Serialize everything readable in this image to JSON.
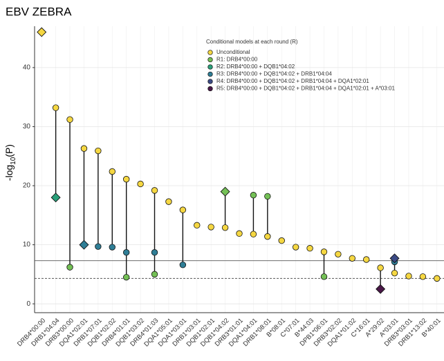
{
  "chart_data": {
    "type": "lollipop",
    "title": "EBV ZEBRA",
    "ylabel_parts": [
      "-log",
      "10",
      "(P)"
    ],
    "legend_title": "Conditional models at each round (R)",
    "categories": [
      "DRB4*00:00",
      "DRB1*04:04",
      "DRB3*00:00",
      "DQA1*02:01",
      "DRB1*07:01",
      "DQB1*02:02",
      "DRB4*01:01",
      "DQB1*03:02",
      "DRB4*01:03",
      "DQA1*05:01",
      "DQA1*03:01",
      "DRB1*03:01",
      "DQB1*02:01",
      "DQB1*04:02",
      "DRB3*01:01",
      "DQA1*04:01",
      "DRB1*08:01",
      "B*08:01",
      "C*07:01",
      "B*44:03",
      "DPB1*06:01",
      "DRB3*02:02",
      "DQA1*01:02",
      "C*16:01",
      "A*29:02",
      "A*03:01",
      "DRB3*03:01",
      "DRB1*13:02",
      "B*40:01"
    ],
    "series": [
      {
        "name": "Unconditional",
        "color": "#f5d742",
        "lead": 0,
        "values": [
          46,
          33.2,
          31.2,
          26.3,
          25.9,
          22.4,
          21.1,
          20.3,
          19.2,
          17.3,
          15.9,
          13.3,
          13,
          12.9,
          11.9,
          11.8,
          11.4,
          10.7,
          9.6,
          9.4,
          8.8,
          8.4,
          7.7,
          7.5,
          6.1,
          5.2,
          4.7,
          4.6,
          4.3
        ]
      },
      {
        "name": "R1: DRB4*00:00",
        "color": "#74c056",
        "lead": 13,
        "values": [
          null,
          null,
          6.2,
          null,
          null,
          null,
          4.5,
          null,
          5.0,
          null,
          null,
          null,
          null,
          19,
          null,
          18.4,
          18.2,
          null,
          null,
          null,
          4.6,
          null,
          null,
          null,
          null,
          null,
          null,
          null,
          null
        ]
      },
      {
        "name": "R2: DRB4*00:00 + DQB1*04:02",
        "color": "#2aa07a",
        "lead": 1,
        "values": [
          null,
          18,
          null,
          null,
          null,
          null,
          null,
          null,
          null,
          null,
          null,
          null,
          null,
          null,
          null,
          null,
          null,
          null,
          null,
          null,
          null,
          null,
          null,
          null,
          null,
          null,
          null,
          null,
          null
        ]
      },
      {
        "name": "R3: DRB4*00:00 + DQB1*04:02 + DRB1*04:04",
        "color": "#2f7e96",
        "lead": 3,
        "values": [
          null,
          null,
          null,
          10,
          9.7,
          9.6,
          8.7,
          null,
          8.7,
          null,
          6.6,
          null,
          null,
          null,
          null,
          null,
          null,
          null,
          null,
          null,
          null,
          null,
          null,
          null,
          null,
          7.1,
          null,
          null,
          null
        ]
      },
      {
        "name": "R4: DRB4*00:00 + DQB1*04:02 + DRB1*04:04 + DQA1*02:01",
        "color": "#3b4a85",
        "lead": 25,
        "values": [
          null,
          null,
          null,
          null,
          null,
          null,
          null,
          null,
          null,
          null,
          null,
          null,
          null,
          null,
          null,
          null,
          null,
          null,
          null,
          null,
          null,
          null,
          null,
          null,
          null,
          7.7,
          null,
          null,
          null
        ]
      },
      {
        "name": "R5: DRB4*00:00 + DQB1*04:02 + DRB1*04:04 + DQA1*02:01 + A*03:01",
        "color": "#4a1848",
        "lead": 24,
        "values": [
          null,
          null,
          null,
          null,
          null,
          null,
          null,
          null,
          null,
          null,
          null,
          null,
          null,
          null,
          null,
          null,
          null,
          null,
          null,
          null,
          null,
          null,
          null,
          null,
          2.5,
          null,
          null,
          null,
          null
        ]
      }
    ],
    "hlines": [
      {
        "value": 7.3,
        "style": "solid"
      },
      {
        "value": 4.3,
        "style": "dashed"
      }
    ],
    "ylim": [
      -1.5,
      47
    ],
    "yticks": [
      0,
      10,
      20,
      30,
      40
    ],
    "grid": true
  }
}
